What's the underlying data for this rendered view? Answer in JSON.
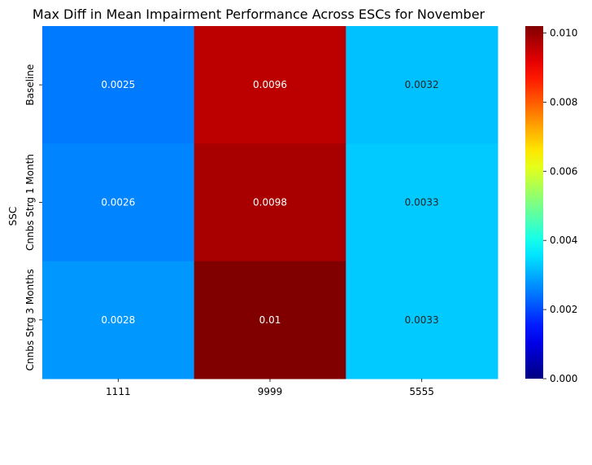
{
  "chart_data": {
    "type": "heatmap",
    "title": "Max Diff in Mean Impairment Performance Across ESCs for November",
    "xlabel": "",
    "ylabel": "SSC",
    "x_categories": [
      "1111",
      "9999",
      "5555"
    ],
    "y_categories": [
      "Baseline",
      "Cnnbs Strg 1 Month",
      "Cnnbs Strg 3 Months"
    ],
    "values": [
      [
        0.0025,
        0.0096,
        0.0032
      ],
      [
        0.0026,
        0.0098,
        0.0033
      ],
      [
        0.0028,
        0.0102,
        0.0033
      ]
    ],
    "annotations": [
      [
        "0.0025",
        "0.0096",
        "0.0032"
      ],
      [
        "0.0026",
        "0.0098",
        "0.0033"
      ],
      [
        "0.0028",
        "0.01",
        "0.0033"
      ]
    ],
    "colormap": "jet",
    "colorbar": {
      "range": [
        0,
        0.0102
      ],
      "ticks": [
        0,
        0.002,
        0.004,
        0.006,
        0.008,
        0.01
      ],
      "tick_labels": [
        "0.000",
        "0.002",
        "0.004",
        "0.006",
        "0.008",
        "0.010"
      ]
    }
  }
}
